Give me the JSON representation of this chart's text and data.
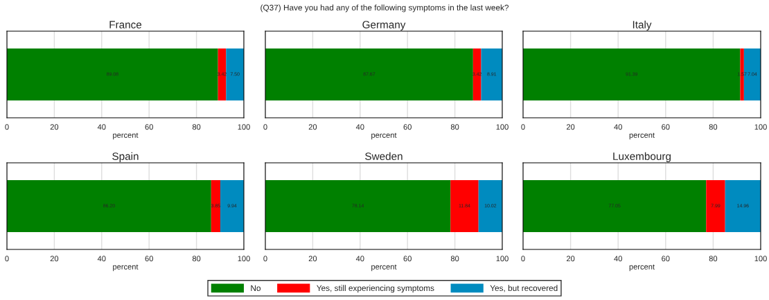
{
  "chart_data": [
    {
      "type": "bar",
      "orientation": "horizontal",
      "stacked": true,
      "title": "France",
      "xlabel": "percent",
      "annotations": [
        "(Q37) Have you had any of the following symptoms in the last week?"
      ],
      "categories": [
        null
      ],
      "xlim": [
        0,
        100
      ],
      "xticks": [
        0,
        20,
        40,
        60,
        80,
        100
      ],
      "grid": "x",
      "tick_labels": "x",
      "legend": "bottom",
      "series": [
        {
          "name": "No",
          "color": "#008000",
          "values": [
            89.08
          ],
          "value_labels": [
            "89.08"
          ]
        },
        {
          "name": "Yes, still experiencing symptoms",
          "color": "#ff0000",
          "values": [
            3.42
          ],
          "value_labels": [
            "3.42"
          ]
        },
        {
          "name": "Yes, but recovered",
          "color": "#008bbf",
          "values": [
            7.5
          ],
          "value_labels": [
            "7.50"
          ]
        }
      ]
    },
    {
      "type": "bar",
      "orientation": "horizontal",
      "stacked": true,
      "title": "Germany",
      "xlabel": "percent",
      "categories": [
        null
      ],
      "xlim": [
        0,
        100
      ],
      "xticks": [
        0,
        20,
        40,
        60,
        80,
        100
      ],
      "grid": "x",
      "tick_labels": "x",
      "data_labels": true,
      "series": [
        {
          "color": "#008000",
          "values": [
            87.67
          ]
        },
        {
          "color": "#ff0000",
          "values": [
            3.42
          ]
        },
        {
          "color": "#008bbf",
          "values": [
            8.91
          ]
        }
      ]
    },
    {
      "type": "bar",
      "orientation": "horizontal",
      "stacked": true,
      "title": "Italy",
      "xlabel": "percent",
      "categories": [
        null
      ],
      "xlim": [
        0,
        100
      ],
      "xticks": [
        0,
        20,
        40,
        60,
        80,
        100
      ],
      "grid": "x",
      "tick_labels": "x",
      "data_labels": true,
      "series": [
        {
          "color": "#008000",
          "values": [
            91.39
          ]
        },
        {
          "color": "#ff0000",
          "values": [
            1.57
          ]
        },
        {
          "color": "#008bbf",
          "values": [
            7.04
          ]
        }
      ]
    },
    {
      "type": "bar",
      "orientation": "horizontal",
      "stacked": true,
      "title": "Spain",
      "xlabel": "percent",
      "categories": [
        null
      ],
      "xlim": [
        0,
        100
      ],
      "xticks": [
        0,
        20,
        40,
        60,
        80,
        100
      ],
      "grid": "x",
      "tick_labels": "x",
      "series": [
        {
          "color": "#008000",
          "values": [
            86.2
          ],
          "value_labels": [
            "86.20"
          ]
        },
        {
          "color": "#ff0000",
          "values": [
            3.85
          ],
          "value_labels": [
            "3.85"
          ]
        },
        {
          "color": "#008bbf",
          "values": [
            9.94
          ],
          "value_labels": [
            "9.94"
          ]
        }
      ]
    },
    {
      "type": "bar",
      "orientation": "horizontal",
      "stacked": true,
      "title": "Sweden",
      "xlabel": "percent",
      "categories": [
        null
      ],
      "xlim": [
        0,
        100
      ],
      "xticks": [
        0,
        20,
        40,
        60,
        80,
        100
      ],
      "grid": "x",
      "tick_labels": "x",
      "data_labels": true,
      "series": [
        {
          "color": "#008000",
          "values": [
            78.14
          ]
        },
        {
          "color": "#ff0000",
          "values": [
            11.84
          ]
        },
        {
          "color": "#008bbf",
          "values": [
            10.02
          ]
        }
      ]
    },
    {
      "type": "bar",
      "orientation": "horizontal",
      "stacked": true,
      "title": "Luxembourg",
      "xlabel": "percent",
      "categories": [
        null
      ],
      "xlim": [
        0,
        100
      ],
      "xticks": [
        0,
        20,
        40,
        60,
        80,
        100
      ],
      "grid": "x",
      "tick_labels": "x",
      "data_labels": true,
      "series": [
        {
          "color": "#008000",
          "values": [
            77.05
          ]
        },
        {
          "color": "#ff0000",
          "values": [
            7.99
          ]
        },
        {
          "color": "#008bbf",
          "values": [
            14.96
          ]
        }
      ]
    }
  ]
}
